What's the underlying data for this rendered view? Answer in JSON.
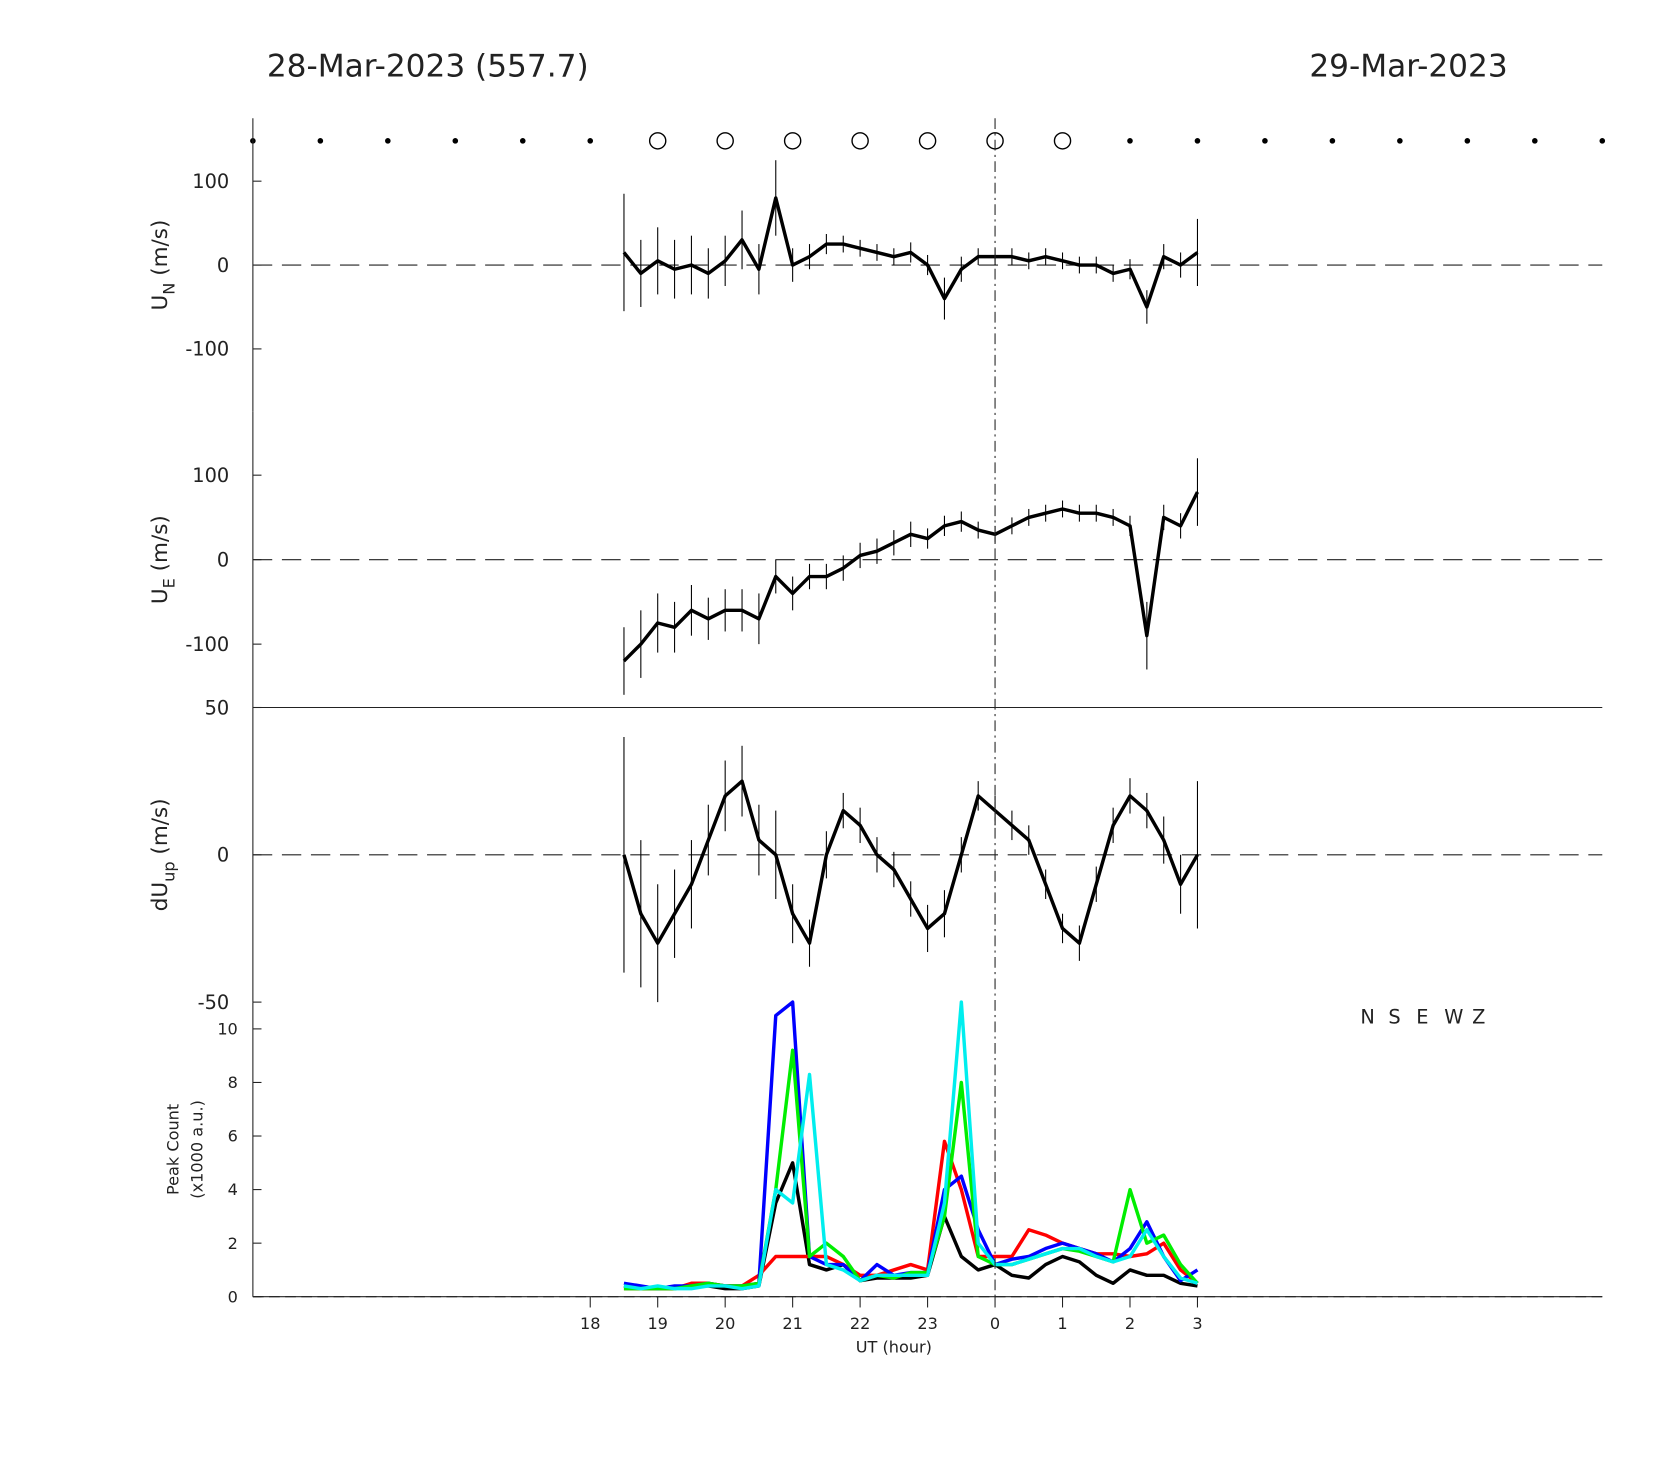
{
  "header": {
    "left_title": "28-Mar-2023 (557.7)",
    "right_title": "29-Mar-2023"
  },
  "markers": {
    "x": [
      13,
      14,
      15,
      16,
      17,
      18,
      19,
      20,
      21,
      22,
      23,
      24,
      25,
      26,
      27,
      28,
      29,
      30,
      31,
      32,
      33
    ],
    "kind": [
      "dot",
      "dot",
      "dot",
      "dot",
      "dot",
      "dot",
      "circle",
      "circle",
      "circle",
      "circle",
      "circle",
      "circle",
      "circle",
      "dot",
      "dot",
      "dot",
      "dot",
      "dot",
      "dot",
      "dot",
      "dot"
    ]
  },
  "reference_time": 24,
  "chart_data": [
    {
      "type": "line_errorbar",
      "ylabel": "U",
      "ylabel_sub": "N",
      "ylabel_unit": " (m/s)",
      "xlim": [
        13,
        33
      ],
      "ylim": [
        -175,
        175
      ],
      "yticks": [
        -100,
        0,
        100
      ],
      "color": "#000000",
      "x": [
        18.5,
        18.75,
        19,
        19.25,
        19.5,
        19.75,
        20,
        20.25,
        20.5,
        20.75,
        21,
        21.25,
        21.5,
        21.75,
        22,
        22.25,
        22.5,
        22.75,
        23,
        23.25,
        23.5,
        23.75,
        24,
        24.25,
        24.5,
        24.75,
        25,
        25.25,
        25.5,
        25.75,
        26,
        26.25,
        26.5,
        26.75,
        27
      ],
      "values": [
        15,
        -10,
        5,
        -5,
        0,
        -10,
        5,
        30,
        -5,
        80,
        0,
        10,
        25,
        25,
        20,
        15,
        10,
        15,
        0,
        -40,
        -5,
        10,
        10,
        10,
        5,
        10,
        5,
        0,
        0,
        -10,
        -5,
        -50,
        10,
        0,
        15
      ],
      "errors": [
        70,
        40,
        40,
        35,
        35,
        30,
        30,
        35,
        30,
        45,
        20,
        15,
        12,
        10,
        10,
        10,
        10,
        12,
        12,
        25,
        15,
        10,
        10,
        10,
        10,
        10,
        10,
        10,
        10,
        10,
        12,
        20,
        15,
        15,
        40
      ]
    },
    {
      "type": "line_errorbar",
      "ylabel": "U",
      "ylabel_sub": "E",
      "ylabel_unit": " (m/s)",
      "xlim": [
        13,
        33
      ],
      "ylim": [
        -175,
        175
      ],
      "yticks": [
        -100,
        0,
        100
      ],
      "color": "#000000",
      "x": [
        18.5,
        18.75,
        19,
        19.25,
        19.5,
        19.75,
        20,
        20.25,
        20.5,
        20.75,
        21,
        21.25,
        21.5,
        21.75,
        22,
        22.25,
        22.5,
        22.75,
        23,
        23.25,
        23.5,
        23.75,
        24,
        24.25,
        24.5,
        24.75,
        25,
        25.25,
        25.5,
        25.75,
        26,
        26.25,
        26.5,
        26.75,
        27
      ],
      "values": [
        -120,
        -100,
        -75,
        -80,
        -60,
        -70,
        -60,
        -60,
        -70,
        -20,
        -40,
        -20,
        -20,
        -10,
        5,
        10,
        20,
        30,
        25,
        40,
        45,
        35,
        30,
        40,
        50,
        55,
        60,
        55,
        55,
        50,
        40,
        -90,
        50,
        40,
        80
      ],
      "errors": [
        40,
        40,
        35,
        30,
        30,
        25,
        25,
        25,
        30,
        20,
        20,
        15,
        15,
        15,
        15,
        15,
        15,
        15,
        12,
        12,
        12,
        10,
        10,
        10,
        10,
        10,
        10,
        10,
        10,
        10,
        12,
        40,
        15,
        15,
        40
      ]
    },
    {
      "type": "line_errorbar",
      "ylabel": "dU",
      "ylabel_sub": "up",
      "ylabel_unit": " (m/s)",
      "xlim": [
        13,
        33
      ],
      "ylim": [
        -50,
        50
      ],
      "yticks": [
        -50,
        0,
        50
      ],
      "color": "#000000",
      "x": [
        18.5,
        18.75,
        19,
        19.25,
        19.5,
        19.75,
        20,
        20.25,
        20.5,
        20.75,
        21,
        21.25,
        21.5,
        21.75,
        22,
        22.25,
        22.5,
        22.75,
        23,
        23.25,
        23.5,
        23.75,
        24,
        24.25,
        24.5,
        24.75,
        25,
        25.25,
        25.5,
        25.75,
        26,
        26.25,
        26.5,
        26.75,
        27
      ],
      "values": [
        0,
        -20,
        -30,
        -20,
        -10,
        5,
        20,
        25,
        5,
        0,
        -20,
        -30,
        0,
        15,
        10,
        0,
        -5,
        -15,
        -25,
        -20,
        0,
        20,
        15,
        10,
        5,
        -10,
        -25,
        -30,
        -10,
        10,
        20,
        15,
        5,
        -10,
        0
      ],
      "errors": [
        40,
        25,
        20,
        15,
        15,
        12,
        12,
        12,
        12,
        15,
        10,
        8,
        8,
        6,
        6,
        6,
        6,
        6,
        8,
        8,
        6,
        5,
        5,
        5,
        5,
        5,
        5,
        6,
        6,
        6,
        6,
        6,
        8,
        10,
        25
      ]
    },
    {
      "type": "line",
      "ylabel": "Peak Count",
      "ylabel2": "(x1000 a.u.)",
      "xlabel": "UT (hour)",
      "xlim": [
        13,
        33
      ],
      "ylim": [
        0,
        11
      ],
      "yticks": [
        0,
        2,
        4,
        6,
        8,
        10
      ],
      "xticks": [
        18,
        19,
        20,
        21,
        22,
        23,
        {
          "value": 24,
          "label": "0"
        },
        {
          "value": 25,
          "label": "1"
        },
        {
          "value": 26,
          "label": "2"
        },
        {
          "value": 27,
          "label": "3"
        }
      ],
      "legend": "upper right",
      "x": [
        18.5,
        18.75,
        19,
        19.25,
        19.5,
        19.75,
        20,
        20.25,
        20.5,
        20.75,
        21,
        21.25,
        21.5,
        21.75,
        22,
        22.25,
        22.5,
        22.75,
        23,
        23.25,
        23.5,
        23.75,
        24,
        24.25,
        24.5,
        24.75,
        25,
        25.25,
        25.5,
        25.75,
        26,
        26.25,
        26.5,
        26.75,
        27
      ],
      "series": [
        {
          "name": "N",
          "color": "#000000",
          "values": [
            0.4,
            0.3,
            0.3,
            0.3,
            0.4,
            0.4,
            0.3,
            0.3,
            0.4,
            3.5,
            5,
            1.2,
            1,
            1.2,
            0.6,
            0.7,
            0.7,
            0.7,
            0.8,
            3,
            1.5,
            1,
            1.2,
            0.8,
            0.7,
            1.2,
            1.5,
            1.3,
            0.8,
            0.5,
            1,
            0.8,
            0.8,
            0.5,
            0.4
          ]
        },
        {
          "name": "S",
          "color": "#ff0000",
          "values": [
            0.3,
            0.3,
            0.3,
            0.3,
            0.5,
            0.5,
            0.4,
            0.4,
            0.8,
            1.5,
            1.5,
            1.5,
            1.5,
            1.2,
            0.8,
            0.8,
            1,
            1.2,
            1,
            5.8,
            4,
            1.5,
            1.5,
            1.5,
            2.5,
            2.3,
            2,
            1.8,
            1.6,
            1.6,
            1.5,
            1.6,
            2,
            1,
            0.5
          ]
        },
        {
          "name": "E",
          "color": "#0000ff",
          "values": [
            0.5,
            0.4,
            0.3,
            0.4,
            0.4,
            0.5,
            0.4,
            0.4,
            0.5,
            10.5,
            11,
            1.5,
            1.2,
            1.2,
            0.6,
            1.2,
            0.8,
            0.9,
            0.9,
            4,
            4.5,
            2.5,
            1.2,
            1.4,
            1.5,
            1.8,
            2,
            1.8,
            1.6,
            1.3,
            1.8,
            2.8,
            1.5,
            0.6,
            1
          ]
        },
        {
          "name": "W",
          "color": "#00ee00",
          "values": [
            0.3,
            0.3,
            0.3,
            0.3,
            0.4,
            0.5,
            0.4,
            0.4,
            0.5,
            4,
            9.2,
            1.5,
            2,
            1.5,
            0.6,
            0.8,
            0.7,
            0.9,
            0.9,
            3,
            8,
            1.5,
            1.2,
            1.2,
            1.4,
            1.6,
            1.8,
            1.7,
            1.5,
            1.3,
            4,
            2,
            2.3,
            1.2,
            0.5
          ]
        },
        {
          "name": "Z",
          "color": "#00eeee",
          "values": [
            0.4,
            0.3,
            0.4,
            0.3,
            0.3,
            0.4,
            0.4,
            0.3,
            0.4,
            4,
            3.5,
            8.3,
            1.2,
            1,
            0.6,
            0.8,
            0.8,
            0.8,
            0.8,
            3.5,
            11,
            2,
            1.2,
            1.2,
            1.4,
            1.6,
            1.8,
            1.8,
            1.5,
            1.3,
            1.5,
            2.5,
            1.5,
            0.7,
            0.5
          ]
        }
      ]
    }
  ]
}
